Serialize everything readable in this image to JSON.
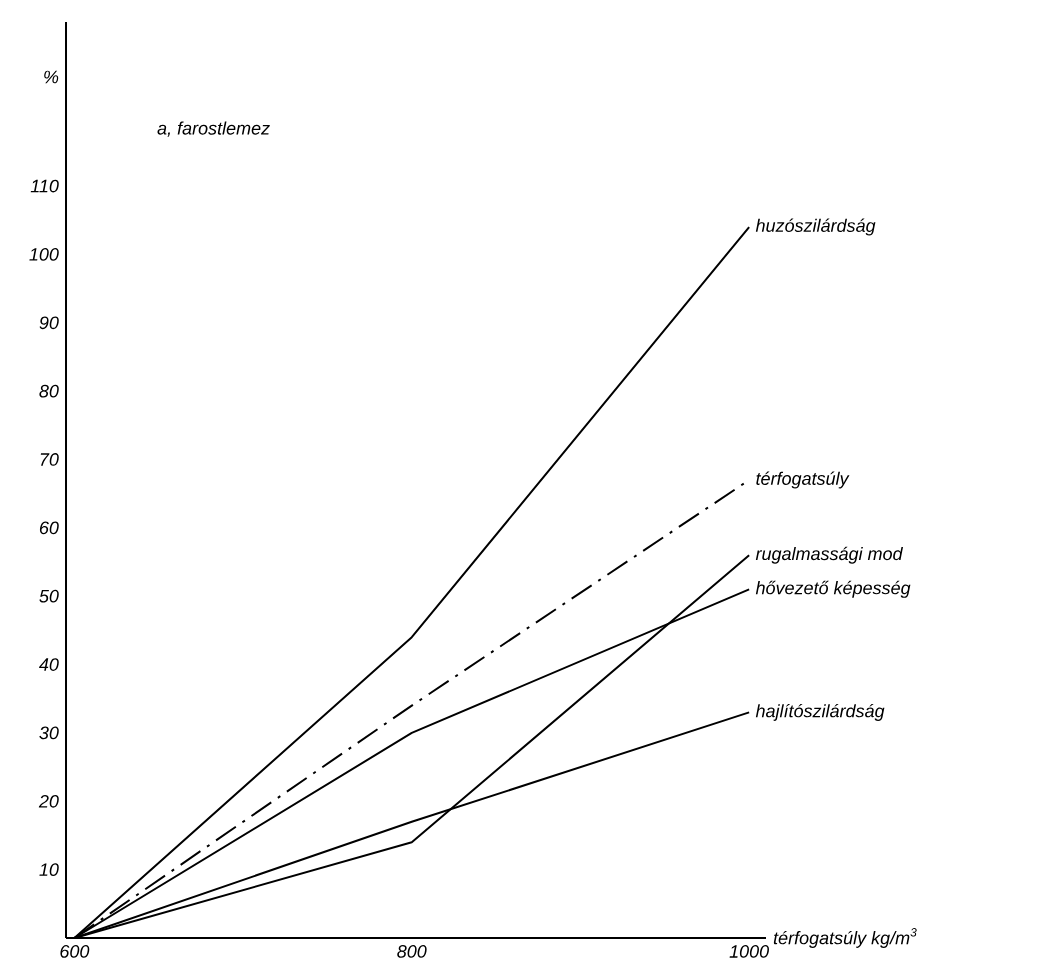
{
  "chart_data": {
    "type": "line",
    "title": "a, farostlemez",
    "xlabel": "térfogatsúly kg/m$^{3}$",
    "ylabel": "%",
    "x": [
      600,
      800,
      1000
    ],
    "xlim": [
      595,
      1010
    ],
    "xticks": [
      600,
      800,
      1000
    ],
    "ylim": [
      0,
      134
    ],
    "yticks": [
      10,
      20,
      30,
      40,
      50,
      60,
      70,
      80,
      90,
      100,
      110
    ],
    "series": [
      {
        "name": "huzószilárdság",
        "color": "#000000",
        "values": [
          0,
          44,
          104
        ]
      },
      {
        "name": "térfogatsúly",
        "color": "#000000",
        "values": [
          0,
          34,
          67
        ],
        "line_style": "dashdot"
      },
      {
        "name": "rugalmassági mod",
        "color": "#000000",
        "values": [
          0,
          14,
          56
        ]
      },
      {
        "name": "hővezető képesség",
        "color": "#000000",
        "values": [
          0,
          30,
          51
        ]
      },
      {
        "name": "hajlítószilárdság",
        "color": "#000000",
        "values": [
          0,
          17,
          33
        ]
      }
    ]
  }
}
